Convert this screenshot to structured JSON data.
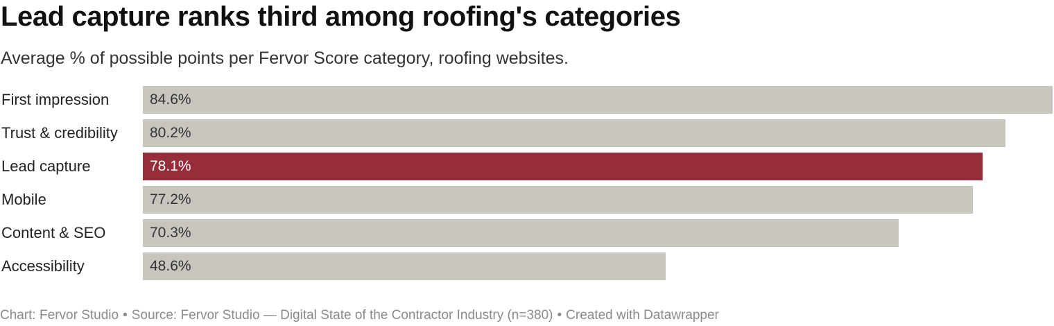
{
  "chart_data": {
    "type": "bar",
    "orientation": "horizontal",
    "title": "Lead capture ranks third among roofing's categories",
    "subtitle": "Average % of possible points per Fervor Score category, roofing websites.",
    "categories": [
      "First impression",
      "Trust & credibility",
      "Lead capture",
      "Mobile",
      "Content & SEO",
      "Accessibility"
    ],
    "values": [
      84.6,
      80.2,
      78.1,
      77.2,
      70.3,
      48.6
    ],
    "value_labels": [
      "84.6%",
      "80.2%",
      "78.1%",
      "77.2%",
      "70.3%",
      "48.6%"
    ],
    "highlight_category": "Lead capture",
    "colors": {
      "bar_default": "#c8c5be",
      "bar_highlight": "#962d3a",
      "label_default": "#333333",
      "label_highlight": "#ffffff"
    },
    "xlim": [
      0,
      84.6
    ],
    "grid": false,
    "legend": "none"
  },
  "footer": {
    "chart_credit": "Chart: Fervor Studio",
    "source": "Source: Fervor Studio — Digital State of the Contractor Industry (n=380)",
    "tool_credit": "Created with Datawrapper",
    "separator": "•"
  }
}
